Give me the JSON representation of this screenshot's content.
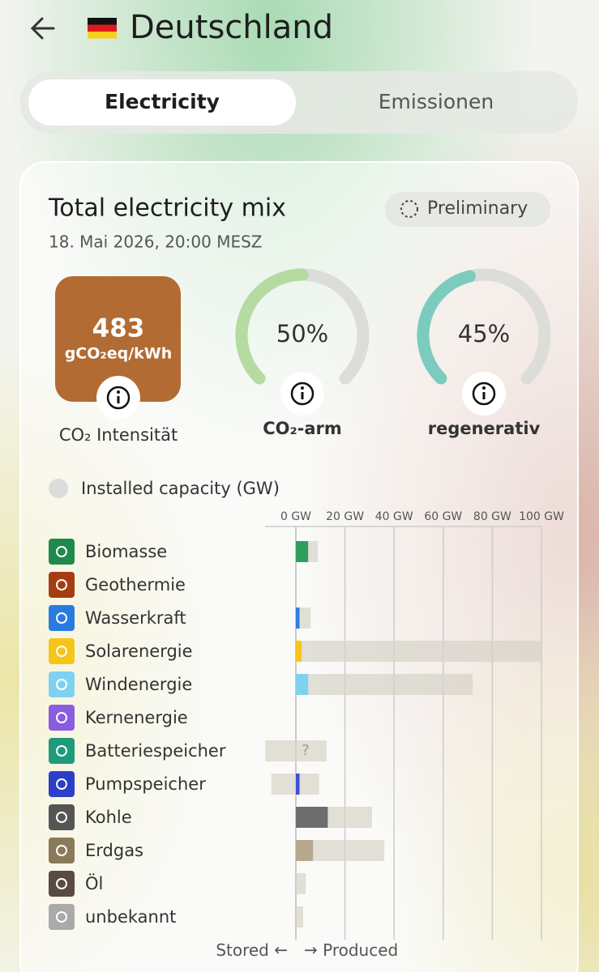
{
  "header": {
    "title": "Deutschland"
  },
  "tabs": [
    "Electricity",
    "Emissionen"
  ],
  "card": {
    "title": "Total electricity mix",
    "badge": "Preliminary",
    "date": "18. Mai 2026, 20:00 MESZ",
    "intensity": {
      "value": 483,
      "unit": "gCO₂eq/kWh",
      "label": "CO₂ Intensität",
      "color": "#b26b32"
    },
    "gauge_range": [
      0,
      100
    ],
    "gauges": [
      {
        "value": 50,
        "value_label": "50%",
        "label": "CO₂-arm",
        "color": "#b5dba0"
      },
      {
        "value": 45,
        "value_label": "45%",
        "label": "regenerativ",
        "color": "#7ccbbf"
      }
    ],
    "capacity_toggle": "Installed capacity (GW)"
  },
  "chart_data": {
    "type": "bar",
    "categories": [
      "Biomasse",
      "Geothermie",
      "Wasserkraft",
      "Solarenergie",
      "Windenergie",
      "Kernenergie",
      "Batteriespeicher",
      "Pumpspeicher",
      "Kohle",
      "Erdgas",
      "Öl",
      "unbekannt"
    ],
    "icon_colors": [
      "#1f8a4c",
      "#a63d12",
      "#2a7be0",
      "#f5c518",
      "#7fd2ef",
      "#8a5ce0",
      "#1f9a7a",
      "#2b3fc8",
      "#555555",
      "#8a7a5a",
      "#5a4a44",
      "#aaaaaa"
    ],
    "series": [
      {
        "name": "Installed capacity (GW)",
        "color": "#d6d3c8",
        "values": [
          9,
          0,
          6,
          100,
          72,
          0,
          12.5,
          9.5,
          31,
          36,
          4,
          3
        ]
      },
      {
        "colors": [
          "#2e9e5e",
          "#9e4a2a",
          "#2d7fe0",
          "#f5c518",
          "#7fd2ef",
          "#8a5ce0",
          "#1f9a7a",
          "#3d4fd8",
          "#6d6d6d",
          "#b8a88e",
          "#5a4a44",
          "#aaaaaa"
        ],
        "values": [
          5,
          0,
          1.5,
          2.3,
          5,
          0,
          null,
          1.5,
          13,
          7,
          0,
          0
        ],
        "value_labels": [
          null,
          null,
          null,
          null,
          null,
          null,
          "?",
          null,
          null,
          null,
          null,
          null
        ]
      }
    ],
    "stored_capacity": [
      null,
      null,
      null,
      null,
      null,
      null,
      -12.5,
      -10,
      null,
      null,
      null,
      null
    ],
    "xlim": [
      -13,
      101.5
    ],
    "xticks": [
      {
        "value": 0,
        "label": "0 GW"
      },
      {
        "value": 20,
        "label": "20 GW"
      },
      {
        "value": 40,
        "label": "40 GW"
      },
      {
        "value": 60,
        "label": "60 GW"
      },
      {
        "value": 80,
        "label": "80 GW"
      },
      {
        "value": 100,
        "label": "100 GW"
      }
    ],
    "grid": true,
    "stored_label": "Stored",
    "produced_label": "Produced"
  }
}
